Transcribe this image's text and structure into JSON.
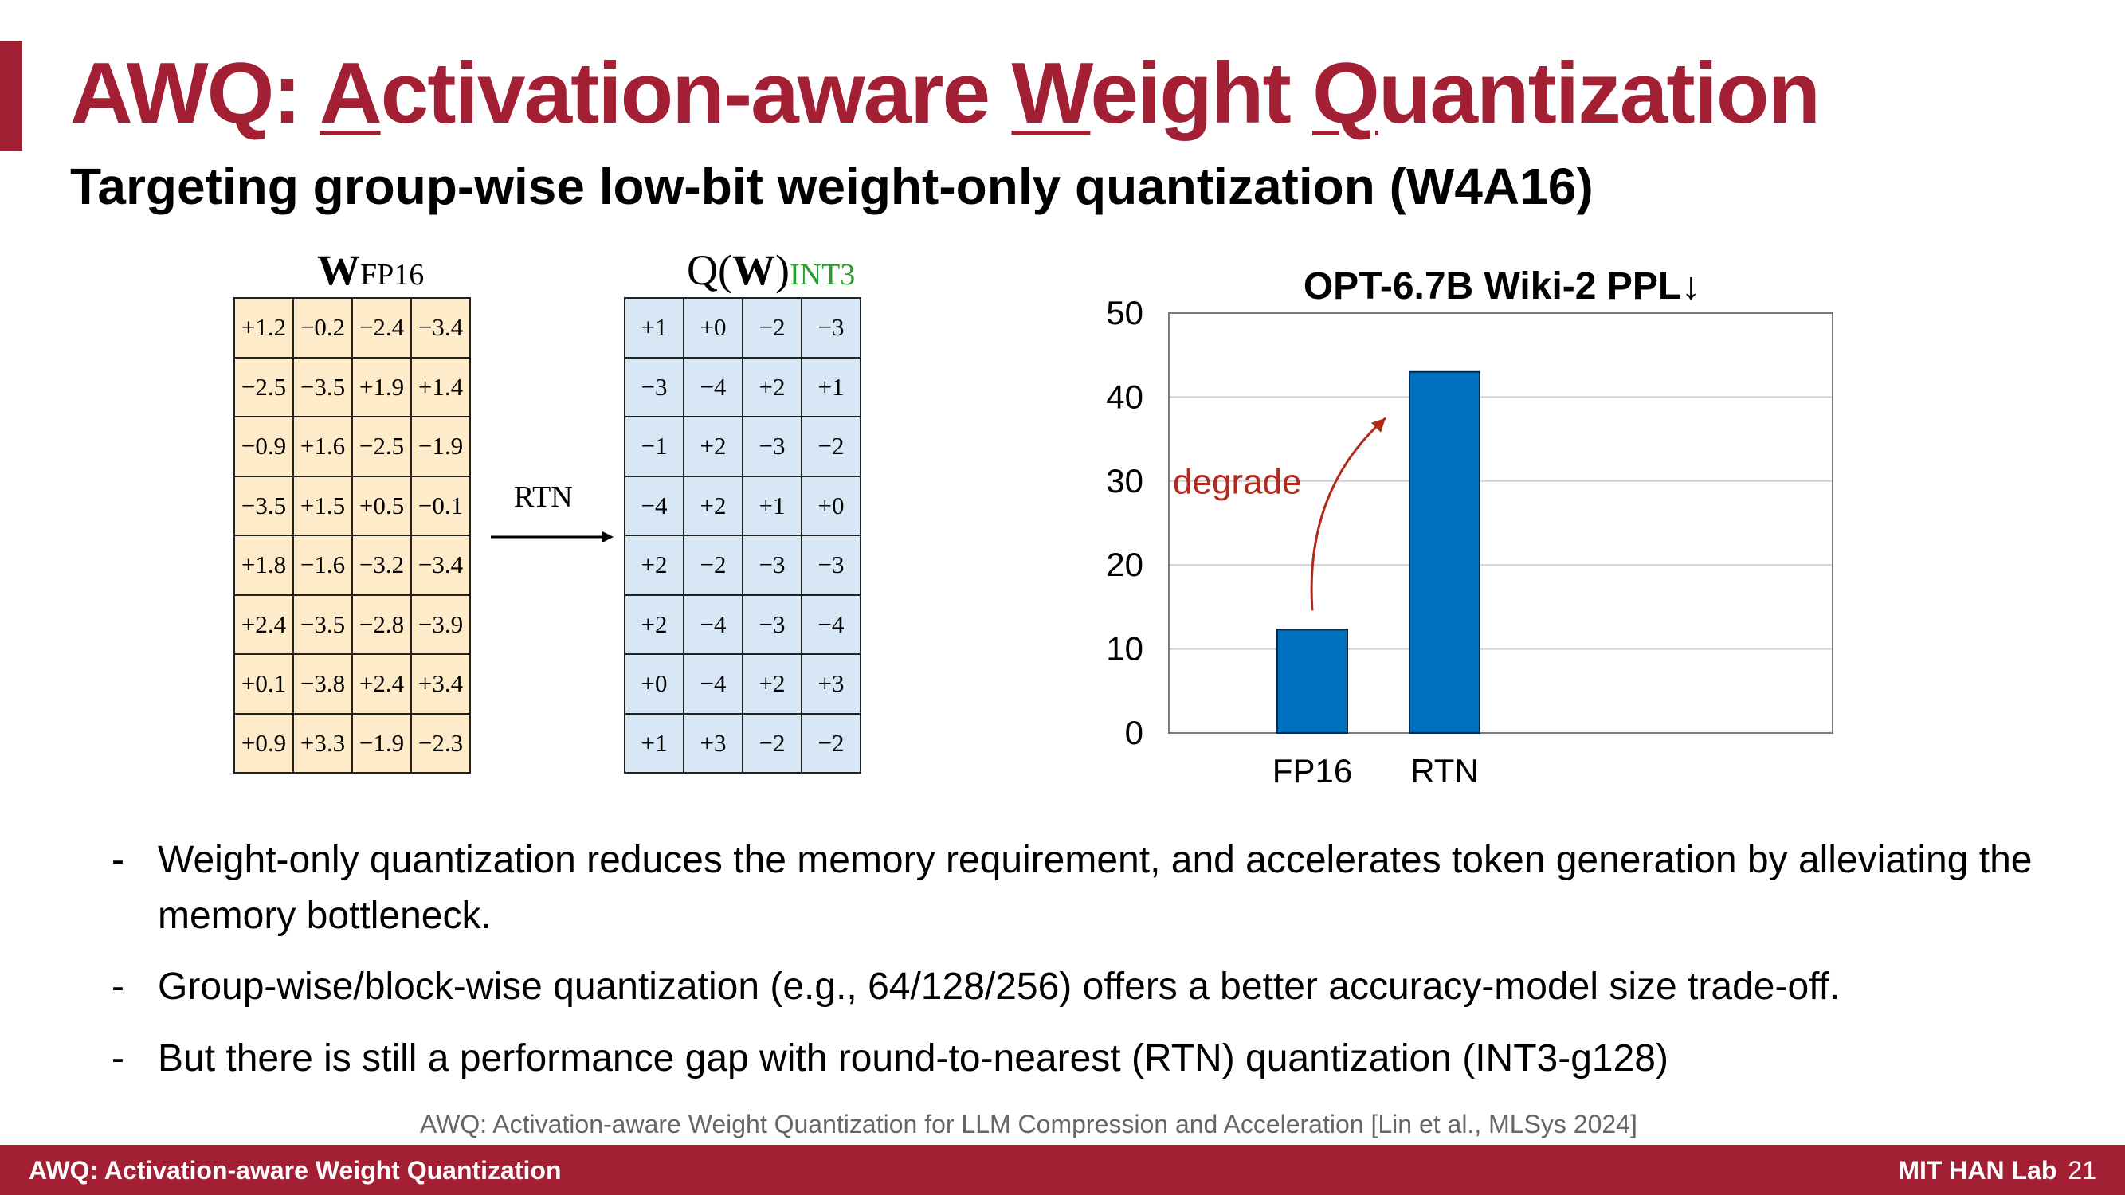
{
  "header": {
    "title_parts": [
      "AWQ: ",
      "A",
      "ctivation-aware ",
      "W",
      "eight ",
      "Q",
      "uantization"
    ],
    "subtitle": "Targeting group-wise low-bit weight-only quantization (W4A16)"
  },
  "matrix_fp16": {
    "label_main": "W",
    "label_sub": "FP16",
    "rows": [
      [
        "+1.2",
        "−0.2",
        "−2.4",
        "−3.4"
      ],
      [
        "−2.5",
        "−3.5",
        "+1.9",
        "+1.4"
      ],
      [
        "−0.9",
        "+1.6",
        "−2.5",
        "−1.9"
      ],
      [
        "−3.5",
        "+1.5",
        "+0.5",
        "−0.1"
      ],
      [
        "+1.8",
        "−1.6",
        "−3.2",
        "−3.4"
      ],
      [
        "+2.4",
        "−3.5",
        "−2.8",
        "−3.9"
      ],
      [
        "+0.1",
        "−3.8",
        "+2.4",
        "+3.4"
      ],
      [
        "+0.9",
        "+3.3",
        "−1.9",
        "−2.3"
      ]
    ]
  },
  "rtn_label": "RTN",
  "matrix_int3": {
    "label_q": "Q(",
    "label_w": "W",
    "label_close": ")",
    "label_sub": "INT3",
    "rows": [
      [
        "+1",
        "+0",
        "−2",
        "−3"
      ],
      [
        "−3",
        "−4",
        "+2",
        "+1"
      ],
      [
        "−1",
        "+2",
        "−3",
        "−2"
      ],
      [
        "−4",
        "+2",
        "+1",
        "+0"
      ],
      [
        "+2",
        "−2",
        "−3",
        "−3"
      ],
      [
        "+2",
        "−4",
        "−3",
        "−4"
      ],
      [
        "+0",
        "−4",
        "+2",
        "+3"
      ],
      [
        "+1",
        "+3",
        "−2",
        "−2"
      ]
    ]
  },
  "chart_data": {
    "type": "bar",
    "title": "OPT-6.7B Wiki-2 PPL↓",
    "categories": [
      "FP16",
      "RTN"
    ],
    "values": [
      12.3,
      43
    ],
    "ylim": [
      0,
      50
    ],
    "yticks": [
      0,
      10,
      20,
      30,
      40,
      50
    ],
    "grid": true,
    "annotation": "degrade",
    "bar_color": "#0070c0",
    "annotation_color": "#b5281c"
  },
  "bullets": [
    "Weight-only quantization reduces the memory requirement, and accelerates token generation by alleviating the memory bottleneck.",
    "Group-wise/block-wise quantization (e.g., 64/128/256) offers a better accuracy-model size trade-off.",
    "But there is still a performance gap with round-to-nearest (RTN) quantization (INT3-g128)"
  ],
  "bullet_marker": "-",
  "citation": "AWQ: Activation-aware Weight Quantization for LLM Compression and Acceleration  [Lin et al., MLSys 2024]",
  "footer": {
    "left": "AWQ: Activation-aware Weight Quantization",
    "lab": "MIT HAN Lab",
    "page": "21"
  },
  "colors": {
    "brand": "#a31f34",
    "fp16_cell": "#fdebc9",
    "int3_cell": "#d7e7f6"
  }
}
